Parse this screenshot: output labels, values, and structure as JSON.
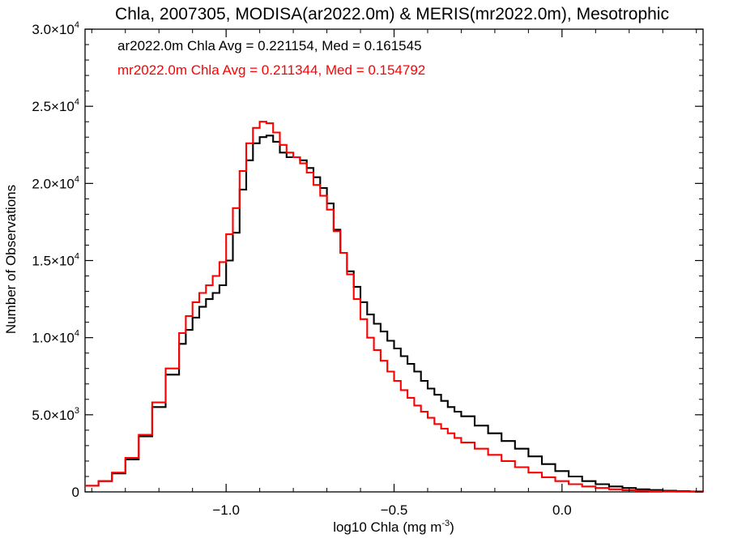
{
  "chart_data": {
    "type": "line",
    "title": "Chla, 2007305, MODISA(ar2022.0m) & MERIS(mr2022.0m), Mesotrophic",
    "xlabel": "log10 Chla (mg m",
    "xlabel_sup": "-3",
    "xlabel_end": ")",
    "ylabel": "Number of Observations",
    "xlim": [
      -1.42,
      0.42
    ],
    "ylim": [
      0,
      30000
    ],
    "xticks": [
      {
        "v": -1.0,
        "label": "−1.0"
      },
      {
        "v": -0.5,
        "label": "−0.5"
      },
      {
        "v": 0.0,
        "label": "0.0"
      }
    ],
    "yticks": [
      {
        "v": 0,
        "label": "0",
        "sup": ""
      },
      {
        "v": 5000,
        "label": "5.0×10",
        "sup": "3"
      },
      {
        "v": 10000,
        "label": "1.0×10",
        "sup": "4"
      },
      {
        "v": 15000,
        "label": "1.5×10",
        "sup": "4"
      },
      {
        "v": 20000,
        "label": "2.0×10",
        "sup": "4"
      },
      {
        "v": 25000,
        "label": "2.5×10",
        "sup": "4"
      },
      {
        "v": 30000,
        "label": "3.0×10",
        "sup": "4"
      }
    ],
    "annotations": [
      "ar2022.0m Chla Avg = 0.221154, Med = 0.161545",
      "mr2022.0m Chla Avg = 0.211344, Med = 0.154792"
    ],
    "series": [
      {
        "color": "#000000",
        "x": [
          -1.42,
          -1.38,
          -1.34,
          -1.3,
          -1.26,
          -1.22,
          -1.18,
          -1.14,
          -1.12,
          -1.1,
          -1.08,
          -1.06,
          -1.04,
          -1.02,
          -1.0,
          -0.98,
          -0.96,
          -0.94,
          -0.92,
          -0.9,
          -0.88,
          -0.86,
          -0.84,
          -0.82,
          -0.8,
          -0.78,
          -0.76,
          -0.74,
          -0.72,
          -0.7,
          -0.68,
          -0.66,
          -0.64,
          -0.62,
          -0.6,
          -0.58,
          -0.56,
          -0.54,
          -0.52,
          -0.5,
          -0.48,
          -0.46,
          -0.44,
          -0.42,
          -0.4,
          -0.38,
          -0.36,
          -0.34,
          -0.32,
          -0.3,
          -0.26,
          -0.22,
          -0.18,
          -0.14,
          -0.1,
          -0.06,
          -0.02,
          0.02,
          0.06,
          0.1,
          0.14,
          0.18,
          0.22,
          0.26,
          0.3,
          0.34,
          0.38,
          0.42
        ],
        "y": [
          400,
          700,
          1200,
          2100,
          3600,
          5500,
          7600,
          9600,
          10500,
          11300,
          12000,
          12500,
          12900,
          13400,
          15000,
          16800,
          19600,
          21500,
          22600,
          23000,
          23100,
          22700,
          22000,
          21700,
          21700,
          21500,
          21000,
          20400,
          19700,
          18700,
          17000,
          15500,
          14300,
          13300,
          12300,
          11500,
          10900,
          10400,
          9800,
          9300,
          8800,
          8300,
          7800,
          7200,
          6700,
          6300,
          5900,
          5500,
          5200,
          4900,
          4300,
          3800,
          3300,
          2800,
          2300,
          1800,
          1350,
          1000,
          700,
          500,
          350,
          250,
          170,
          120,
          80,
          50,
          30,
          20
        ]
      },
      {
        "color": "#ff0000",
        "x": [
          -1.42,
          -1.38,
          -1.34,
          -1.3,
          -1.26,
          -1.22,
          -1.18,
          -1.14,
          -1.12,
          -1.1,
          -1.08,
          -1.06,
          -1.04,
          -1.02,
          -1.0,
          -0.98,
          -0.96,
          -0.94,
          -0.92,
          -0.9,
          -0.88,
          -0.86,
          -0.84,
          -0.82,
          -0.8,
          -0.78,
          -0.76,
          -0.74,
          -0.72,
          -0.7,
          -0.68,
          -0.66,
          -0.64,
          -0.62,
          -0.6,
          -0.58,
          -0.56,
          -0.54,
          -0.52,
          -0.5,
          -0.48,
          -0.46,
          -0.44,
          -0.42,
          -0.4,
          -0.38,
          -0.36,
          -0.34,
          -0.32,
          -0.3,
          -0.26,
          -0.22,
          -0.18,
          -0.14,
          -0.1,
          -0.06,
          -0.02,
          0.02,
          0.06,
          0.1,
          0.14,
          0.18,
          0.22,
          0.26,
          0.3,
          0.34,
          0.38,
          0.42
        ],
        "y": [
          400,
          700,
          1250,
          2200,
          3700,
          5800,
          8000,
          10300,
          11400,
          12300,
          12900,
          13400,
          14000,
          14900,
          16700,
          18400,
          20800,
          22600,
          23600,
          24000,
          23900,
          23300,
          22500,
          22000,
          21700,
          21300,
          20700,
          19900,
          19200,
          18300,
          16900,
          15500,
          14100,
          12500,
          11200,
          10000,
          9200,
          8500,
          7800,
          7200,
          6600,
          6100,
          5600,
          5200,
          4800,
          4400,
          4100,
          3800,
          3500,
          3200,
          2800,
          2400,
          2000,
          1600,
          1250,
          950,
          700,
          500,
          350,
          250,
          170,
          110,
          70,
          45,
          30,
          20,
          15,
          10
        ]
      }
    ]
  }
}
